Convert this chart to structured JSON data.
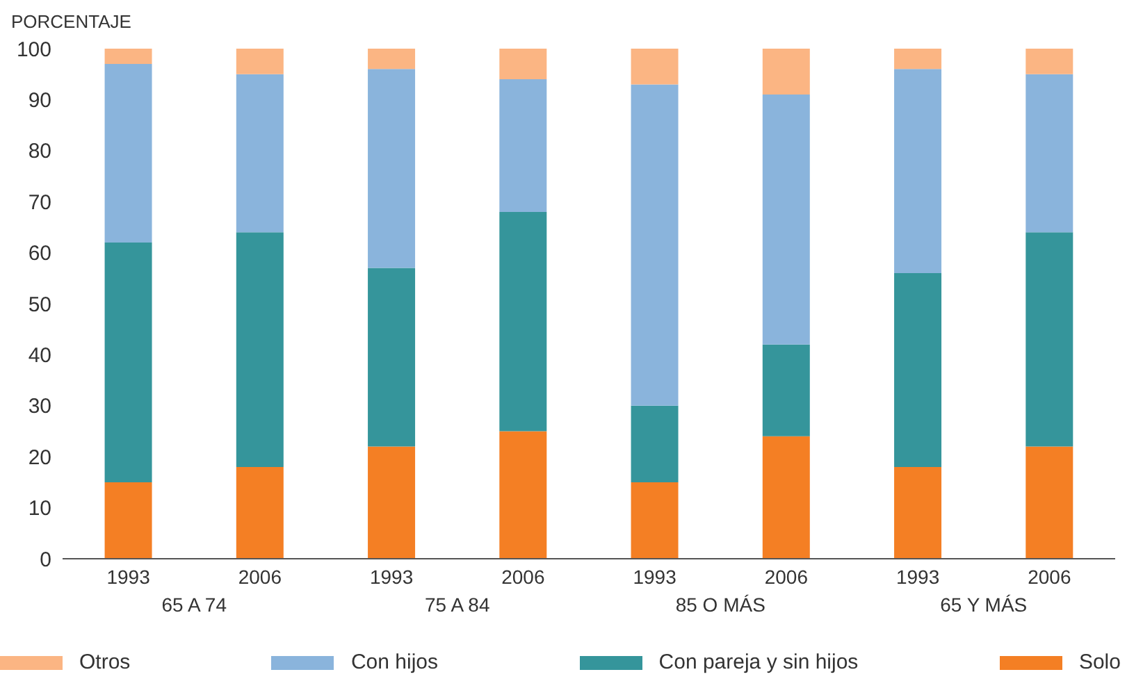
{
  "chart_data": {
    "type": "bar",
    "stacked": true,
    "ylabel": "PORCENTAJE",
    "categories": [
      "1993",
      "2006",
      "1993",
      "2006",
      "1993",
      "2006",
      "1993",
      "2006"
    ],
    "annotations": [
      "65 A 74",
      "75 A 84",
      "85 O MÁS",
      "65 Y MÁS"
    ],
    "series": [
      {
        "name": "Solo",
        "color": "#f47f24",
        "values": [
          15,
          18,
          22,
          25,
          15,
          24,
          18,
          22
        ]
      },
      {
        "name": "Con pareja y sin hijos",
        "color": "#35959b",
        "values": [
          47,
          46,
          35,
          43,
          15,
          18,
          38,
          42
        ]
      },
      {
        "name": "Con hijos",
        "color": "#8ab4dc",
        "values": [
          35,
          31,
          39,
          26,
          63,
          49,
          40,
          31
        ]
      },
      {
        "name": "Otros",
        "color": "#fbb583",
        "values": [
          3,
          5,
          4,
          6,
          7,
          9,
          4,
          5
        ]
      }
    ],
    "ylim": [
      0,
      100
    ],
    "yticks": [
      0,
      10,
      20,
      30,
      40,
      50,
      60,
      70,
      80,
      90,
      100
    ],
    "grid": false,
    "legend": "bottom"
  }
}
